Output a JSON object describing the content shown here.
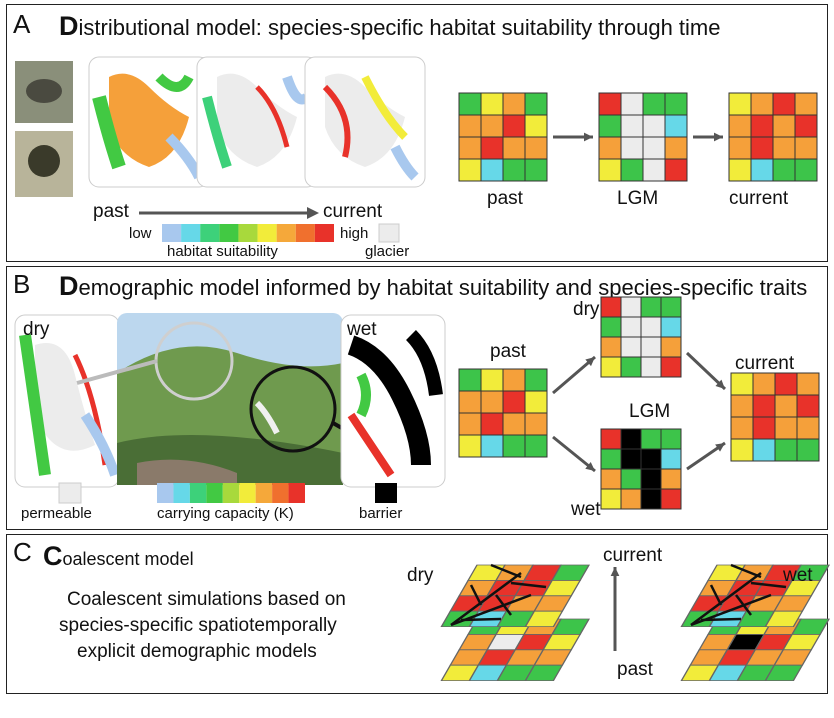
{
  "panels": {
    "a": {
      "letter": "A",
      "title_initial": "D",
      "title_rest": "istributional model: species-specific habitat suitability through time",
      "arrow_left": "past",
      "arrow_right": "current",
      "legend_low": "low",
      "legend_high": "high",
      "legend_caption": "habitat suitability",
      "glacier_label": "glacier",
      "grid_labels": [
        "past",
        "LGM",
        "current"
      ]
    },
    "b": {
      "letter": "B",
      "title_initial": "D",
      "title_rest": "emographic model informed by habitat suitability and species-specific traits",
      "dry_label": "dry",
      "wet_label": "wet",
      "permeable_label": "permeable",
      "carrying_label": "carrying capacity (K)",
      "barrier_label": "barrier",
      "past_label": "past",
      "lgm_label": "LGM",
      "current_label": "current",
      "dry_grid_label": "dry",
      "wet_grid_label": "wet"
    },
    "c": {
      "letter": "C",
      "title_initial": "C",
      "title_rest": "oalescent model",
      "description": [
        "Coalescent simulations based on",
        "species-specific spatiotemporally",
        "explicit demographic models"
      ],
      "dry_label": "dry",
      "wet_label": "wet",
      "current_label": "current",
      "past_label": "past"
    }
  },
  "colors": {
    "scale": [
      "#a8c8ee",
      "#66d8e8",
      "#3dd17a",
      "#42c943",
      "#a8d93c",
      "#f2ec3a",
      "#f5a83a",
      "#f0702e",
      "#e8322a"
    ],
    "glacier": "#ececec",
    "barrier": "#000000"
  },
  "grids": {
    "a_past": [
      "G",
      "Y",
      "O",
      "G",
      "O",
      "O",
      "R",
      "Y",
      "O",
      "R",
      "O",
      "O",
      "Y",
      "C",
      "G",
      "G"
    ],
    "a_lgm": [
      "R",
      "W",
      "G",
      "G",
      "G",
      "W",
      "W",
      "C",
      "O",
      "W",
      "W",
      "O",
      "Y",
      "G",
      "W",
      "R"
    ],
    "a_current": [
      "Y",
      "O",
      "R",
      "O",
      "O",
      "R",
      "O",
      "R",
      "O",
      "R",
      "O",
      "O",
      "Y",
      "C",
      "G",
      "G"
    ],
    "b_past": [
      "G",
      "Y",
      "O",
      "G",
      "O",
      "O",
      "R",
      "Y",
      "O",
      "R",
      "O",
      "O",
      "Y",
      "C",
      "G",
      "G"
    ],
    "b_dry": [
      "R",
      "W",
      "G",
      "G",
      "G",
      "W",
      "W",
      "C",
      "O",
      "W",
      "W",
      "O",
      "Y",
      "G",
      "W",
      "R"
    ],
    "b_wet": [
      "R",
      "K",
      "G",
      "G",
      "G",
      "K",
      "K",
      "C",
      "O",
      "G",
      "K",
      "O",
      "Y",
      "O",
      "K",
      "R"
    ],
    "b_current": [
      "Y",
      "O",
      "R",
      "O",
      "O",
      "R",
      "O",
      "R",
      "O",
      "R",
      "O",
      "O",
      "Y",
      "C",
      "G",
      "G"
    ],
    "c_dry_top": [
      "Y",
      "O",
      "R",
      "G",
      "O",
      "R",
      "R",
      "Y",
      "R",
      "R",
      "O",
      "O",
      "G",
      "C",
      "G",
      "Y"
    ],
    "c_dry_bot": [
      "G",
      "Y",
      "O",
      "G",
      "O",
      "W",
      "R",
      "Y",
      "O",
      "R",
      "O",
      "O",
      "Y",
      "C",
      "G",
      "G"
    ],
    "c_wet_top": [
      "Y",
      "O",
      "R",
      "G",
      "O",
      "R",
      "R",
      "Y",
      "R",
      "R",
      "O",
      "O",
      "G",
      "C",
      "G",
      "Y"
    ],
    "c_wet_bot": [
      "G",
      "Y",
      "O",
      "G",
      "O",
      "K",
      "R",
      "Y",
      "O",
      "R",
      "O",
      "O",
      "Y",
      "C",
      "G",
      "G"
    ]
  },
  "cell_colors": {
    "G": "#3dc44a",
    "Y": "#f2ec3a",
    "O": "#f5a03a",
    "R": "#e8322a",
    "C": "#66d8e8",
    "W": "#ececec",
    "K": "#000000"
  }
}
